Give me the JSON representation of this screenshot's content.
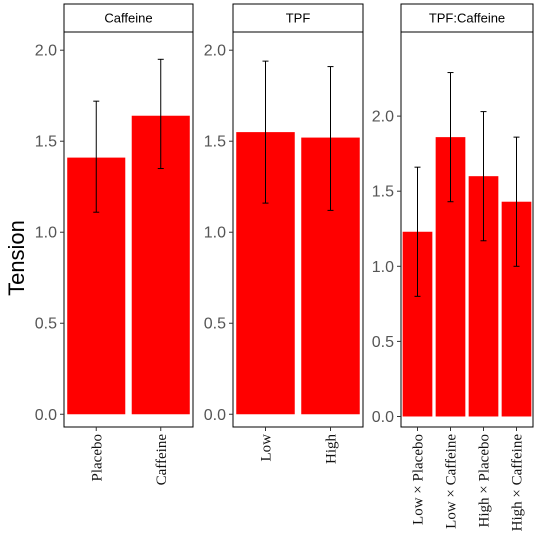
{
  "chart_data": {
    "type": "bar",
    "ylabel": "Tension",
    "colors": {
      "bar": "#ff0000",
      "error_bar": "#000000",
      "panel_border": "#000000",
      "strip_bg": "#ffffff",
      "tick_text": "#555555"
    },
    "panels": [
      {
        "strip": "Caffeine",
        "categories": [
          "Placebo",
          "Caffeine"
        ],
        "values": [
          1.41,
          1.64
        ],
        "error_low": [
          1.11,
          1.35
        ],
        "error_high": [
          1.72,
          1.95
        ],
        "ylim": [
          -0.07,
          2.1
        ],
        "yticks": [
          "0.0",
          "0.5",
          "1.0",
          "1.5",
          "2.0"
        ]
      },
      {
        "strip": "TPF",
        "categories": [
          "Low",
          "High"
        ],
        "values": [
          1.55,
          1.52
        ],
        "error_low": [
          1.16,
          1.12
        ],
        "error_high": [
          1.94,
          1.91
        ],
        "ylim": [
          -0.07,
          2.1
        ],
        "yticks": [
          "0.0",
          "0.5",
          "1.0",
          "1.5",
          "2.0"
        ]
      },
      {
        "strip": "TPF:Caffeine",
        "categories": [
          "Low × Placebo",
          "Low × Caffeine",
          "High × Placebo",
          "High × Caffeine"
        ],
        "values": [
          1.23,
          1.86,
          1.6,
          1.43
        ],
        "error_low": [
          0.8,
          1.43,
          1.17,
          1.0
        ],
        "error_high": [
          1.66,
          2.29,
          2.03,
          1.86
        ],
        "ylim": [
          -0.07,
          2.56
        ],
        "yticks": [
          "0.0",
          "0.5",
          "1.0",
          "1.5",
          "2.0"
        ]
      }
    ]
  }
}
